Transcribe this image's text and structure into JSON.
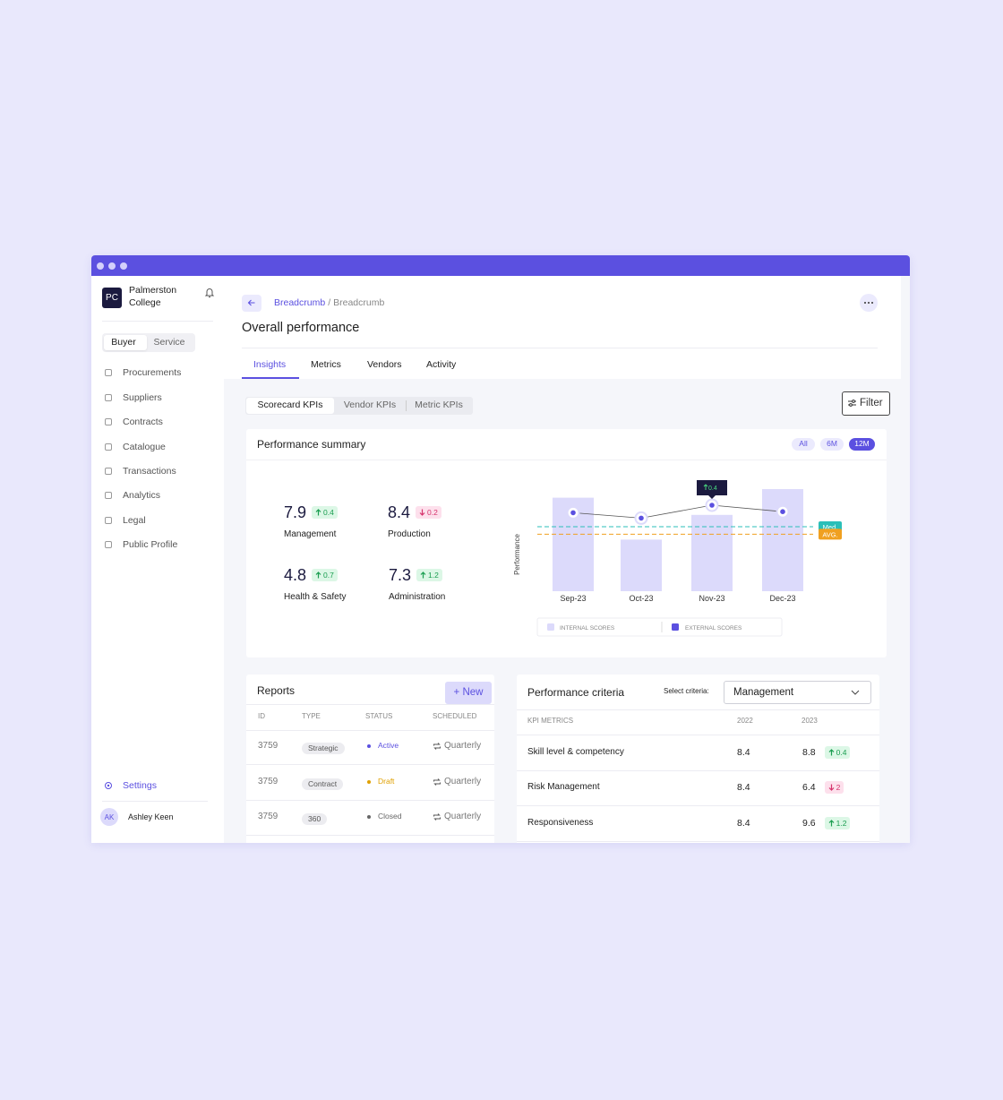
{
  "sidebar": {
    "logo": "PC",
    "org_name": "Palmerston College",
    "toggle": [
      "Buyer",
      "Service"
    ],
    "nav": [
      "Procurements",
      "Suppliers",
      "Contracts",
      "Catalogue",
      "Transactions",
      "Analytics",
      "Legal",
      "Public Profile"
    ],
    "settings": "Settings",
    "user": {
      "initials": "AK",
      "name": "Ashley Keen"
    }
  },
  "header": {
    "breadcrumb": [
      "Breadcrumb",
      "Breadcrumb"
    ],
    "breadcrumb_separator": "/",
    "title": "Overall performance",
    "tabs": [
      "Insights",
      "Metrics",
      "Vendors",
      "Activity"
    ]
  },
  "kpi_tabs": [
    "Scorecard KPIs",
    "Vendor KPIs",
    "Metric KPIs"
  ],
  "filter": "Filter",
  "summary": {
    "title": "Performance summary",
    "ranges": [
      "All",
      "6M",
      "12M"
    ],
    "kpis": [
      {
        "value": 7.9,
        "change": 0.4,
        "trend": "up",
        "label": "Management"
      },
      {
        "value": 8.4,
        "change": 0.2,
        "trend": "down",
        "label": "Production"
      },
      {
        "value": 4.8,
        "change": 0.7,
        "trend": "up",
        "label": "Health & Safety"
      },
      {
        "value": 7.3,
        "change": 1.2,
        "trend": "up",
        "label": "Administration"
      }
    ]
  },
  "chart": {
    "type": "bar",
    "y_label": "Performance",
    "categories": [
      "Sep-23",
      "Oct-23",
      "Nov-23",
      "Dec-23"
    ],
    "ylim": [
      0,
      100
    ],
    "series": [
      {
        "name": "INTERNAL SCORES",
        "color": "#dcdafb",
        "values": [
          87,
          48,
          71,
          95
        ]
      },
      {
        "name": "EXTERNAL SCORES",
        "color": "#5b50e0",
        "values": [
          73,
          68,
          80,
          74
        ]
      }
    ],
    "median": 60,
    "median_label": "Med.",
    "median_color": "#2bbfb8",
    "avg": 53,
    "avg_label": "AVG.",
    "avg_color": "#f0a020",
    "tooltip": 0.4
  },
  "reports": {
    "title": "Reports",
    "new": "+ New",
    "columns": [
      "ID",
      "TYPE",
      "STATUS",
      "SCHEDULED"
    ],
    "rows": [
      [
        3759,
        "Strategic",
        "Active",
        "Quarterly"
      ],
      [
        3759,
        "Contract",
        "Draft",
        "Quarterly"
      ],
      [
        3759,
        "360",
        "Closed",
        "Quarterly"
      ]
    ]
  },
  "criteria": {
    "title": "Performance criteria",
    "select_label": "Select criteria:",
    "selected": "Management",
    "columns": [
      "KPI METRICS",
      "2022",
      "2023"
    ],
    "rows": [
      {
        "metric": "Skill level & competency",
        "y2022": 8.4,
        "y2023": 8.8,
        "change": 0.4,
        "trend": "up"
      },
      {
        "metric": "Risk Management",
        "y2022": 8.4,
        "y2023": 6.4,
        "change": 2,
        "trend": "down"
      },
      {
        "metric": "Responsiveness",
        "y2022": 8.4,
        "y2023": 9.6,
        "change": 1.2,
        "trend": "up"
      }
    ]
  }
}
